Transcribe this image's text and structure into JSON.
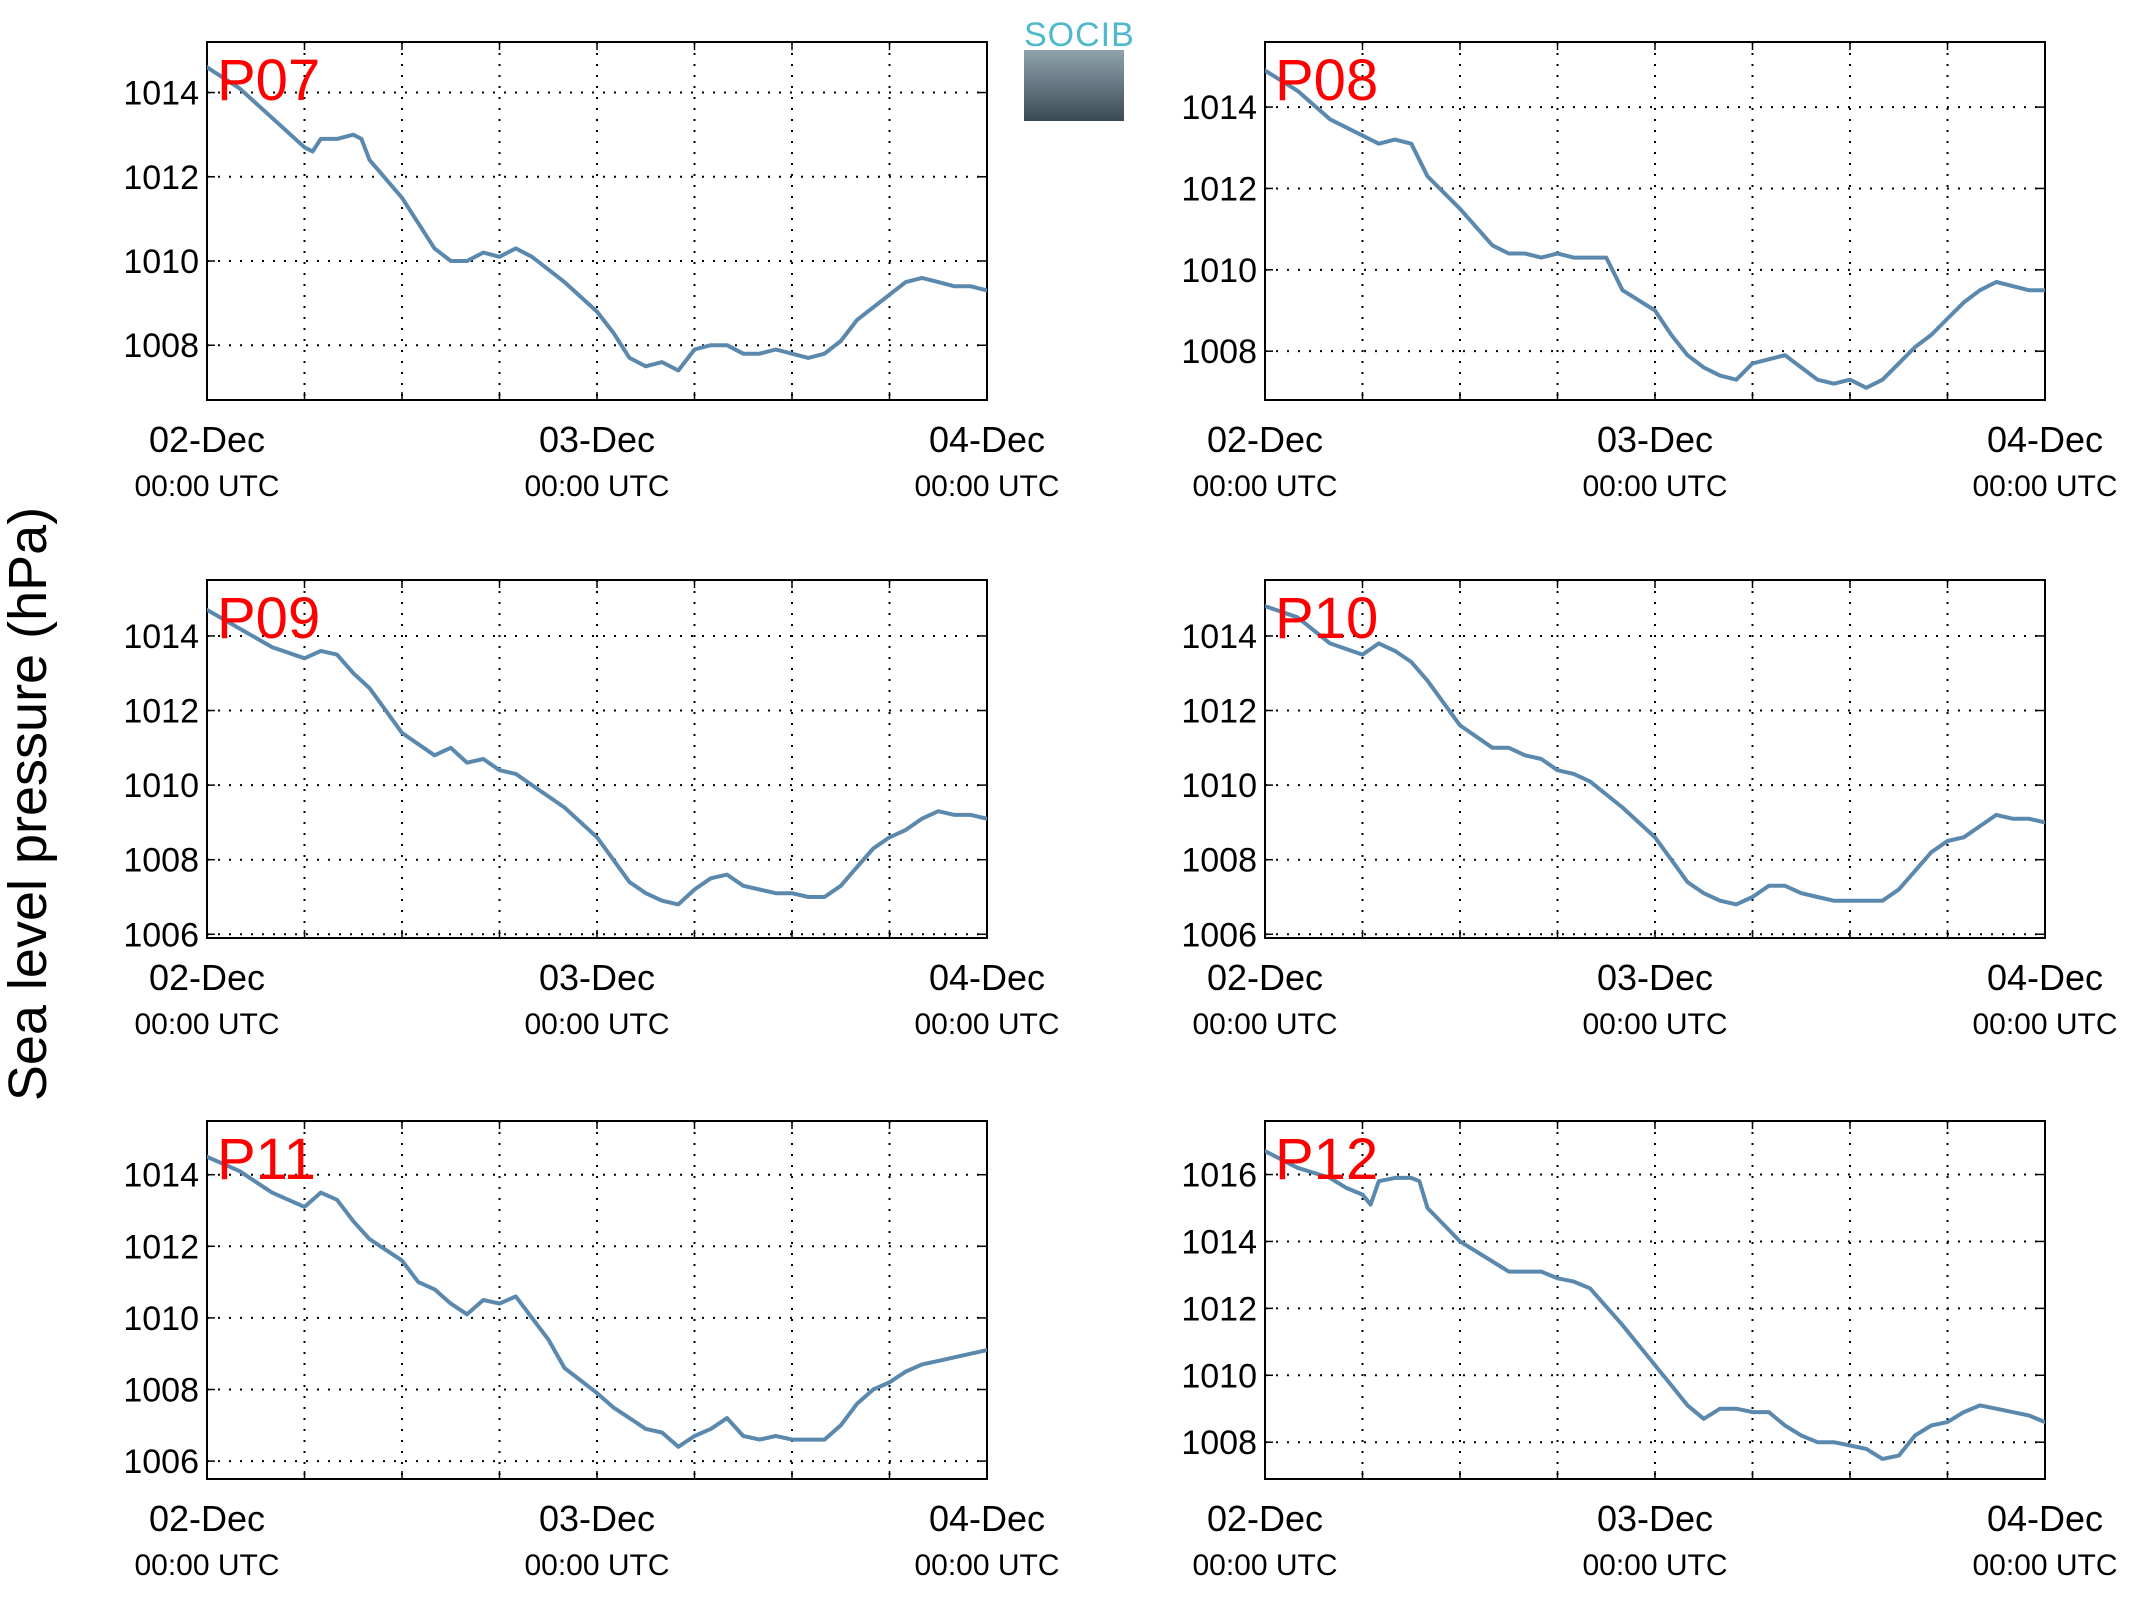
{
  "figure": {
    "ylabel": "Sea level pressure (hPa)",
    "logo_text": "SOCIB",
    "colors": {
      "line": "#5b88ad",
      "station_label": "#ff0000",
      "grid": "#000000",
      "logo_text": "#4fb8cc",
      "logo_top": "#8fa3ad",
      "logo_bottom": "#3a4a55"
    }
  },
  "chart_data": [
    {
      "type": "line",
      "title": "P07",
      "x_ticks": [
        {
          "x": 0,
          "line1": "02-Dec",
          "line2": "00:00 UTC"
        },
        {
          "x": 24,
          "line1": "03-Dec",
          "line2": "00:00 UTC"
        },
        {
          "x": 48,
          "line1": "04-Dec",
          "line2": "00:00 UTC"
        }
      ],
      "x_grid": [
        6,
        12,
        18,
        24,
        30,
        36,
        42
      ],
      "xlim": [
        0,
        48
      ],
      "ylim": [
        1006.7,
        1015.2
      ],
      "yticks": [
        1008,
        1010,
        1012,
        1014
      ],
      "grid": true,
      "x_unit": "hours since 02-Dec 00:00 UTC",
      "x": [
        0,
        2,
        4,
        6,
        6.5,
        7,
        8,
        9,
        9.5,
        10,
        12,
        14,
        15,
        16,
        17,
        18,
        19,
        20,
        22,
        24,
        25,
        26,
        27,
        28,
        29,
        30,
        31,
        32,
        33,
        34,
        35,
        36,
        37,
        38,
        39,
        40,
        41,
        42,
        43,
        44,
        45,
        46,
        47,
        48
      ],
      "y": [
        1014.6,
        1014.1,
        1013.4,
        1012.7,
        1012.6,
        1012.9,
        1012.9,
        1013.0,
        1012.9,
        1012.4,
        1011.5,
        1010.3,
        1010.0,
        1010.0,
        1010.2,
        1010.1,
        1010.3,
        1010.1,
        1009.5,
        1008.8,
        1008.3,
        1007.7,
        1007.5,
        1007.6,
        1007.4,
        1007.9,
        1008.0,
        1008.0,
        1007.8,
        1007.8,
        1007.9,
        1007.8,
        1007.7,
        1007.8,
        1008.1,
        1008.6,
        1008.9,
        1009.2,
        1009.5,
        1009.6,
        1009.5,
        1009.4,
        1009.4,
        1009.3
      ]
    },
    {
      "type": "line",
      "title": "P08",
      "x_ticks": [
        {
          "x": 0,
          "line1": "02-Dec",
          "line2": "00:00 UTC"
        },
        {
          "x": 24,
          "line1": "03-Dec",
          "line2": "00:00 UTC"
        },
        {
          "x": 48,
          "line1": "04-Dec",
          "line2": "00:00 UTC"
        }
      ],
      "x_grid": [
        6,
        12,
        18,
        24,
        30,
        36,
        42
      ],
      "xlim": [
        0,
        48
      ],
      "ylim": [
        1006.8,
        1015.6
      ],
      "yticks": [
        1008,
        1010,
        1012,
        1014
      ],
      "grid": true,
      "x_unit": "hours since 02-Dec 00:00 UTC",
      "x": [
        0,
        2,
        4,
        6,
        7,
        8,
        9,
        10,
        12,
        14,
        15,
        16,
        17,
        18,
        19,
        20,
        21,
        22,
        24,
        25,
        26,
        27,
        28,
        29,
        30,
        31,
        32,
        33,
        34,
        35,
        36,
        37,
        38,
        39,
        40,
        41,
        42,
        43,
        44,
        45,
        46,
        47,
        48
      ],
      "y": [
        1014.9,
        1014.4,
        1013.7,
        1013.3,
        1013.1,
        1013.2,
        1013.1,
        1012.3,
        1011.5,
        1010.6,
        1010.4,
        1010.4,
        1010.3,
        1010.4,
        1010.3,
        1010.3,
        1010.3,
        1009.5,
        1009.0,
        1008.4,
        1007.9,
        1007.6,
        1007.4,
        1007.3,
        1007.7,
        1007.8,
        1007.9,
        1007.6,
        1007.3,
        1007.2,
        1007.3,
        1007.1,
        1007.3,
        1007.7,
        1008.1,
        1008.4,
        1008.8,
        1009.2,
        1009.5,
        1009.7,
        1009.6,
        1009.5,
        1009.5
      ]
    },
    {
      "type": "line",
      "title": "P09",
      "x_ticks": [
        {
          "x": 0,
          "line1": "02-Dec",
          "line2": "00:00 UTC"
        },
        {
          "x": 24,
          "line1": "03-Dec",
          "line2": "00:00 UTC"
        },
        {
          "x": 48,
          "line1": "04-Dec",
          "line2": "00:00 UTC"
        }
      ],
      "x_grid": [
        6,
        12,
        18,
        24,
        30,
        36,
        42
      ],
      "xlim": [
        0,
        48
      ],
      "ylim": [
        1005.9,
        1015.5
      ],
      "yticks": [
        1006,
        1008,
        1010,
        1012,
        1014
      ],
      "grid": true,
      "x_unit": "hours since 02-Dec 00:00 UTC",
      "x": [
        0,
        2,
        4,
        6,
        7,
        8,
        9,
        10,
        12,
        14,
        15,
        16,
        17,
        18,
        19,
        20,
        22,
        24,
        25,
        26,
        27,
        28,
        29,
        30,
        31,
        32,
        33,
        34,
        35,
        36,
        37,
        38,
        39,
        40,
        41,
        42,
        43,
        44,
        45,
        46,
        47,
        48
      ],
      "y": [
        1014.7,
        1014.2,
        1013.7,
        1013.4,
        1013.6,
        1013.5,
        1013.0,
        1012.6,
        1011.4,
        1010.8,
        1011.0,
        1010.6,
        1010.7,
        1010.4,
        1010.3,
        1010.0,
        1009.4,
        1008.6,
        1008.0,
        1007.4,
        1007.1,
        1006.9,
        1006.8,
        1007.2,
        1007.5,
        1007.6,
        1007.3,
        1007.2,
        1007.1,
        1007.1,
        1007.0,
        1007.0,
        1007.3,
        1007.8,
        1008.3,
        1008.6,
        1008.8,
        1009.1,
        1009.3,
        1009.2,
        1009.2,
        1009.1
      ]
    },
    {
      "type": "line",
      "title": "P10",
      "x_ticks": [
        {
          "x": 0,
          "line1": "02-Dec",
          "line2": "00:00 UTC"
        },
        {
          "x": 24,
          "line1": "03-Dec",
          "line2": "00:00 UTC"
        },
        {
          "x": 48,
          "line1": "04-Dec",
          "line2": "00:00 UTC"
        }
      ],
      "x_grid": [
        6,
        12,
        18,
        24,
        30,
        36,
        42
      ],
      "xlim": [
        0,
        48
      ],
      "ylim": [
        1005.9,
        1015.5
      ],
      "yticks": [
        1006,
        1008,
        1010,
        1012,
        1014
      ],
      "grid": true,
      "x_unit": "hours since 02-Dec 00:00 UTC",
      "x": [
        0,
        2,
        4,
        6,
        7,
        8,
        9,
        10,
        12,
        14,
        15,
        16,
        17,
        18,
        19,
        20,
        22,
        24,
        25,
        26,
        27,
        28,
        29,
        30,
        31,
        32,
        33,
        34,
        35,
        36,
        37,
        38,
        39,
        40,
        41,
        42,
        43,
        44,
        45,
        46,
        47,
        48
      ],
      "y": [
        1014.8,
        1014.5,
        1013.8,
        1013.5,
        1013.8,
        1013.6,
        1013.3,
        1012.8,
        1011.6,
        1011.0,
        1011.0,
        1010.8,
        1010.7,
        1010.4,
        1010.3,
        1010.1,
        1009.4,
        1008.6,
        1008.0,
        1007.4,
        1007.1,
        1006.9,
        1006.8,
        1007.0,
        1007.3,
        1007.3,
        1007.1,
        1007.0,
        1006.9,
        1006.9,
        1006.9,
        1006.9,
        1007.2,
        1007.7,
        1008.2,
        1008.5,
        1008.6,
        1008.9,
        1009.2,
        1009.1,
        1009.1,
        1009.0
      ]
    },
    {
      "type": "line",
      "title": "P11",
      "x_ticks": [
        {
          "x": 0,
          "line1": "02-Dec",
          "line2": "00:00 UTC"
        },
        {
          "x": 24,
          "line1": "03-Dec",
          "line2": "00:00 UTC"
        },
        {
          "x": 48,
          "line1": "04-Dec",
          "line2": "00:00 UTC"
        }
      ],
      "x_grid": [
        6,
        12,
        18,
        24,
        30,
        36,
        42
      ],
      "xlim": [
        0,
        48
      ],
      "ylim": [
        1005.5,
        1015.5
      ],
      "yticks": [
        1006,
        1008,
        1010,
        1012,
        1014
      ],
      "grid": true,
      "x_unit": "hours since 02-Dec 00:00 UTC",
      "x": [
        0,
        2,
        4,
        6,
        7,
        8,
        9,
        10,
        12,
        13,
        14,
        15,
        16,
        17,
        18,
        19,
        20,
        21,
        22,
        24,
        25,
        26,
        27,
        28,
        29,
        30,
        31,
        32,
        33,
        34,
        35,
        36,
        37,
        38,
        39,
        40,
        41,
        42,
        43,
        44,
        45,
        46,
        47,
        48
      ],
      "y": [
        1014.5,
        1014.1,
        1013.5,
        1013.1,
        1013.5,
        1013.3,
        1012.7,
        1012.2,
        1011.6,
        1011.0,
        1010.8,
        1010.4,
        1010.1,
        1010.5,
        1010.4,
        1010.6,
        1010.0,
        1009.4,
        1008.6,
        1007.9,
        1007.5,
        1007.2,
        1006.9,
        1006.8,
        1006.4,
        1006.7,
        1006.9,
        1007.2,
        1006.7,
        1006.6,
        1006.7,
        1006.6,
        1006.6,
        1006.6,
        1007.0,
        1007.6,
        1008.0,
        1008.2,
        1008.5,
        1008.7,
        1008.8,
        1008.9,
        1009.0,
        1009.1
      ]
    },
    {
      "type": "line",
      "title": "P12",
      "x_ticks": [
        {
          "x": 0,
          "line1": "02-Dec",
          "line2": "00:00 UTC"
        },
        {
          "x": 24,
          "line1": "03-Dec",
          "line2": "00:00 UTC"
        },
        {
          "x": 48,
          "line1": "04-Dec",
          "line2": "00:00 UTC"
        }
      ],
      "x_grid": [
        6,
        12,
        18,
        24,
        30,
        36,
        42
      ],
      "xlim": [
        0,
        48
      ],
      "ylim": [
        1006.9,
        1017.6
      ],
      "yticks": [
        1008,
        1010,
        1012,
        1014,
        1016
      ],
      "grid": true,
      "x_unit": "hours since 02-Dec 00:00 UTC",
      "x": [
        0,
        2,
        4,
        5,
        6,
        6.5,
        7,
        8,
        9,
        9.5,
        10,
        12,
        14,
        15,
        16,
        17,
        18,
        19,
        20,
        22,
        24,
        25,
        26,
        27,
        28,
        29,
        30,
        31,
        32,
        33,
        34,
        35,
        36,
        37,
        38,
        39,
        40,
        41,
        42,
        43,
        44,
        45,
        46,
        47,
        48
      ],
      "y": [
        1016.7,
        1016.2,
        1015.9,
        1015.6,
        1015.4,
        1015.1,
        1015.8,
        1015.9,
        1015.9,
        1015.8,
        1015.0,
        1014.0,
        1013.4,
        1013.1,
        1013.1,
        1013.1,
        1012.9,
        1012.8,
        1012.6,
        1011.5,
        1010.3,
        1009.7,
        1009.1,
        1008.7,
        1009.0,
        1009.0,
        1008.9,
        1008.9,
        1008.5,
        1008.2,
        1008.0,
        1008.0,
        1007.9,
        1007.8,
        1007.5,
        1007.6,
        1008.2,
        1008.5,
        1008.6,
        1008.9,
        1009.1,
        1009.0,
        1008.9,
        1008.8,
        1008.6
      ]
    }
  ]
}
